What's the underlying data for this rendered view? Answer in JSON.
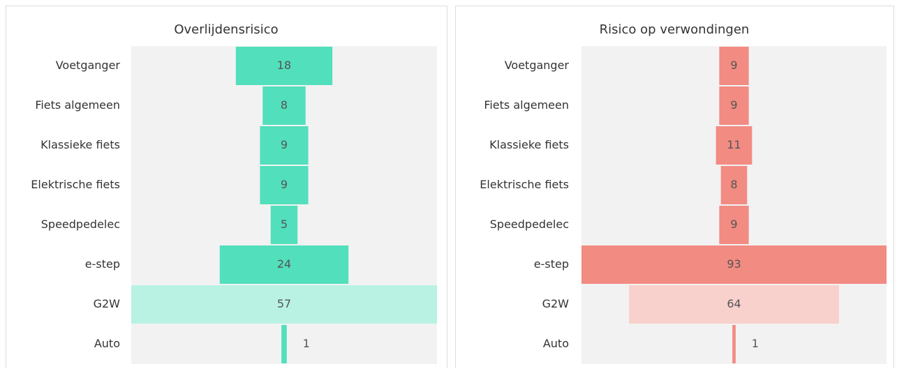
{
  "chart_data": [
    {
      "type": "funnel",
      "title": "Overlijdensrisico",
      "categories": [
        "Voetganger",
        "Fiets algemeen",
        "Klassieke fiets",
        "Elektrische fiets",
        "Speedpedelec",
        "e-step",
        "G2W",
        "Auto"
      ],
      "values": [
        18,
        8,
        9,
        9,
        5,
        24,
        57,
        1
      ],
      "colors": [
        "#52dfbb",
        "#52dfbb",
        "#52dfbb",
        "#52dfbb",
        "#52dfbb",
        "#52dfbb",
        "#b9f2e2",
        "#52dfbb"
      ]
    },
    {
      "type": "funnel",
      "title": "Risico op verwondingen",
      "categories": [
        "Voetganger",
        "Fiets algemeen",
        "Klassieke fiets",
        "Elektrische fiets",
        "Speedpedelec",
        "e-step",
        "G2W",
        "Auto"
      ],
      "values": [
        9,
        9,
        11,
        8,
        9,
        93,
        64,
        1
      ],
      "colors": [
        "#f28b82",
        "#f28b82",
        "#f28b82",
        "#f28b82",
        "#f28b82",
        "#f28b82",
        "#f8d0cc",
        "#f28b82"
      ]
    }
  ]
}
